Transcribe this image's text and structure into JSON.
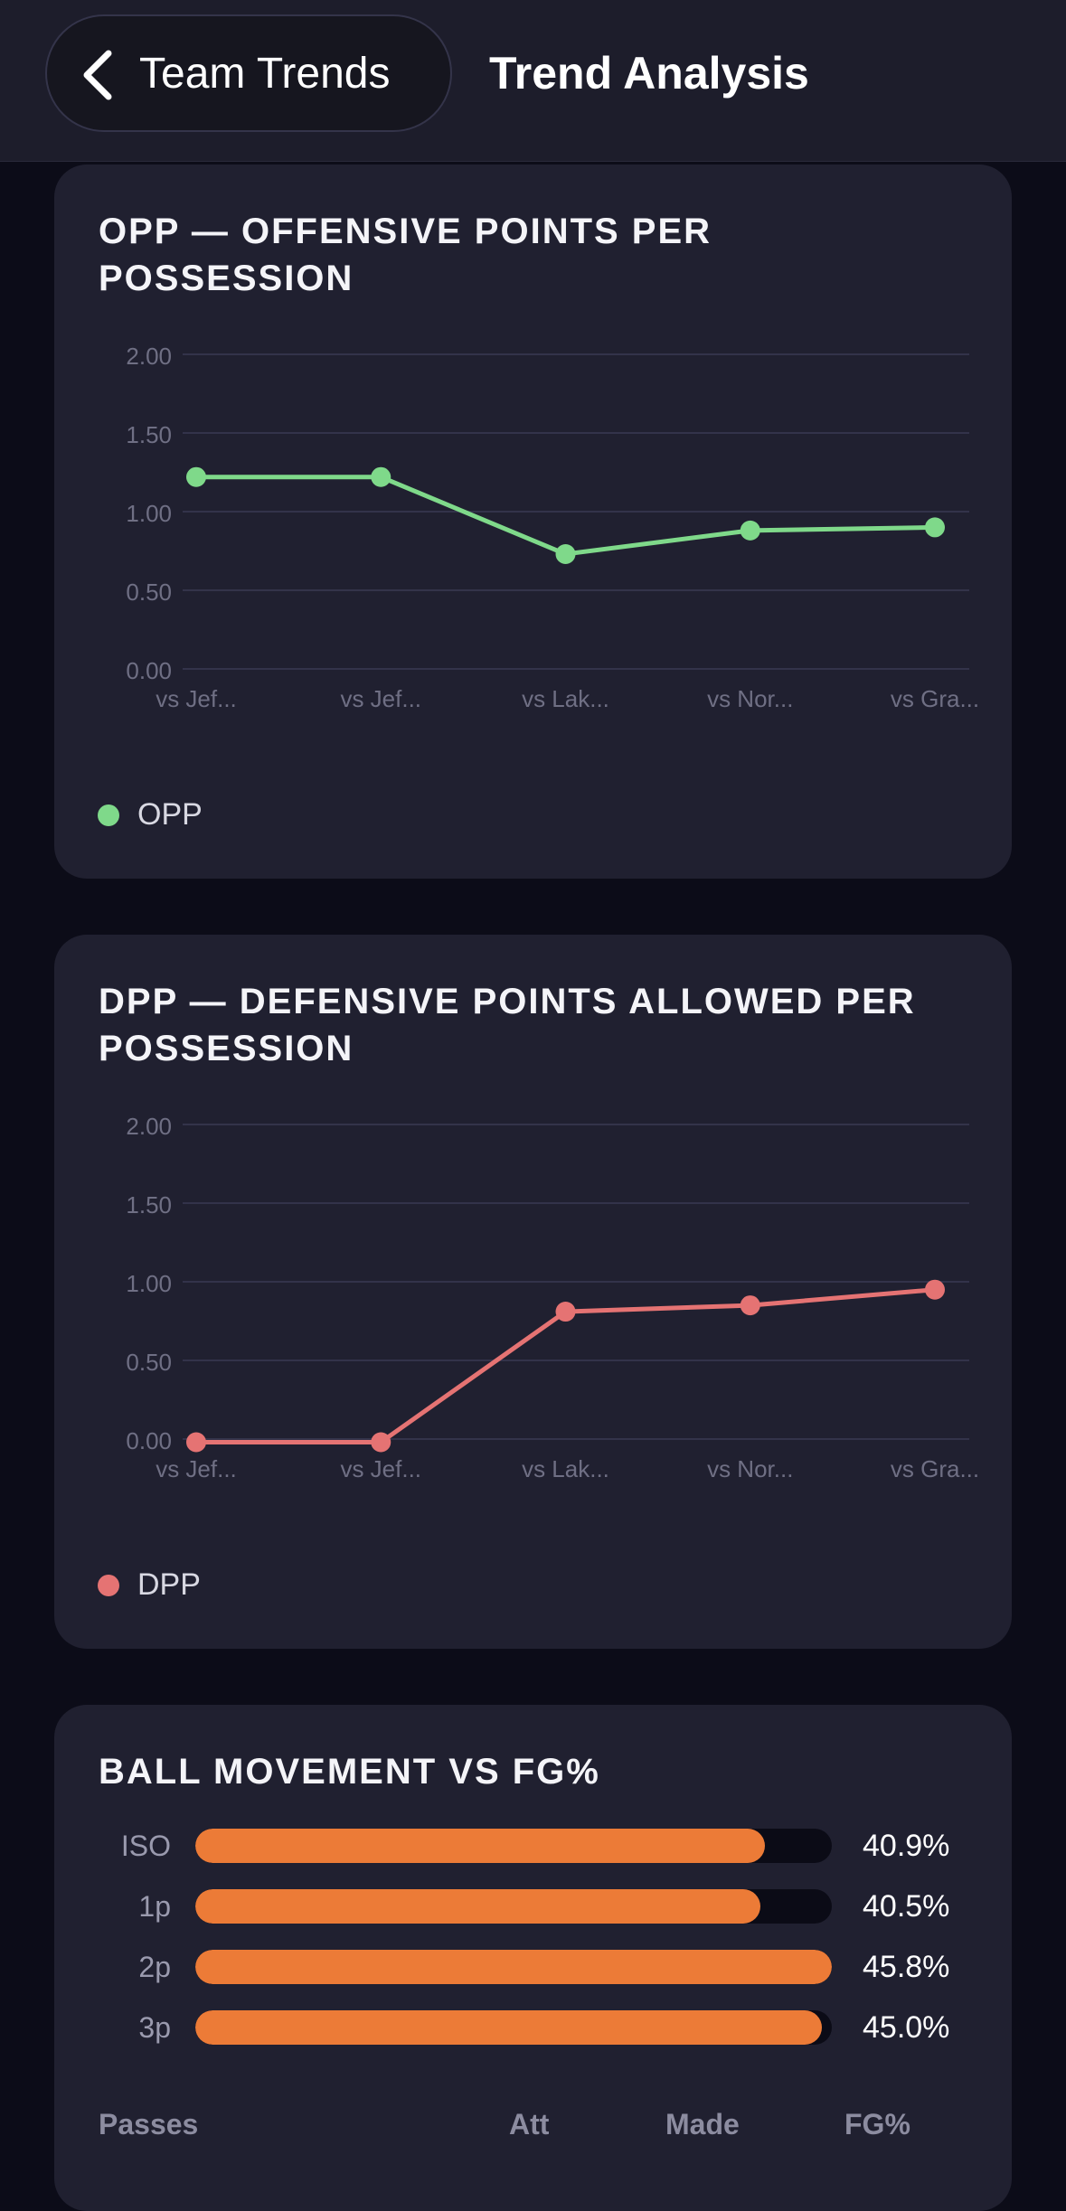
{
  "header": {
    "back_label": "Team Trends",
    "title": "Trend Analysis"
  },
  "opp_card": {
    "title": "OPP — OFFENSIVE POINTS PER POSSESSION",
    "legend": "OPP",
    "color": "#7fd98a"
  },
  "dpp_card": {
    "title": "DPP — DEFENSIVE POINTS ALLOWED PER POSSESSION",
    "legend": "DPP",
    "color": "#e57373"
  },
  "chart_data": [
    {
      "type": "line",
      "title": "OPP — OFFENSIVE POINTS PER POSSESSION",
      "categories": [
        "vs Jef...",
        "vs Jef...",
        "vs Lak...",
        "vs Nor...",
        "vs Gra..."
      ],
      "series": [
        {
          "name": "OPP",
          "values": [
            1.22,
            1.22,
            0.73,
            0.88,
            0.9
          ]
        }
      ],
      "yticks": [
        "2.00",
        "1.50",
        "1.00",
        "0.50",
        "0.00"
      ],
      "ylim": [
        0,
        2
      ],
      "grid": true,
      "legend": "bottom-left"
    },
    {
      "type": "line",
      "title": "DPP — DEFENSIVE POINTS ALLOWED PER POSSESSION",
      "categories": [
        "vs Jef...",
        "vs Jef...",
        "vs Lak...",
        "vs Nor...",
        "vs Gra..."
      ],
      "series": [
        {
          "name": "DPP",
          "values": [
            -0.02,
            -0.02,
            0.81,
            0.85,
            0.95
          ]
        }
      ],
      "yticks": [
        "2.00",
        "1.50",
        "1.00",
        "0.50",
        "0.00"
      ],
      "ylim": [
        0,
        2
      ],
      "grid": true,
      "legend": "bottom-left"
    }
  ],
  "ball_movement": {
    "title": "BALL MOVEMENT VS FG%",
    "bar_color": "#ec7b37",
    "rows": [
      {
        "label": "ISO",
        "value": "40.9%",
        "fill": 0.895
      },
      {
        "label": "1p",
        "value": "40.5%",
        "fill": 0.888
      },
      {
        "label": "2p",
        "value": "45.8%",
        "fill": 1.0
      },
      {
        "label": "3p",
        "value": "45.0%",
        "fill": 0.985
      }
    ],
    "table_headers": [
      "Passes",
      "Att",
      "Made",
      "FG%"
    ]
  }
}
